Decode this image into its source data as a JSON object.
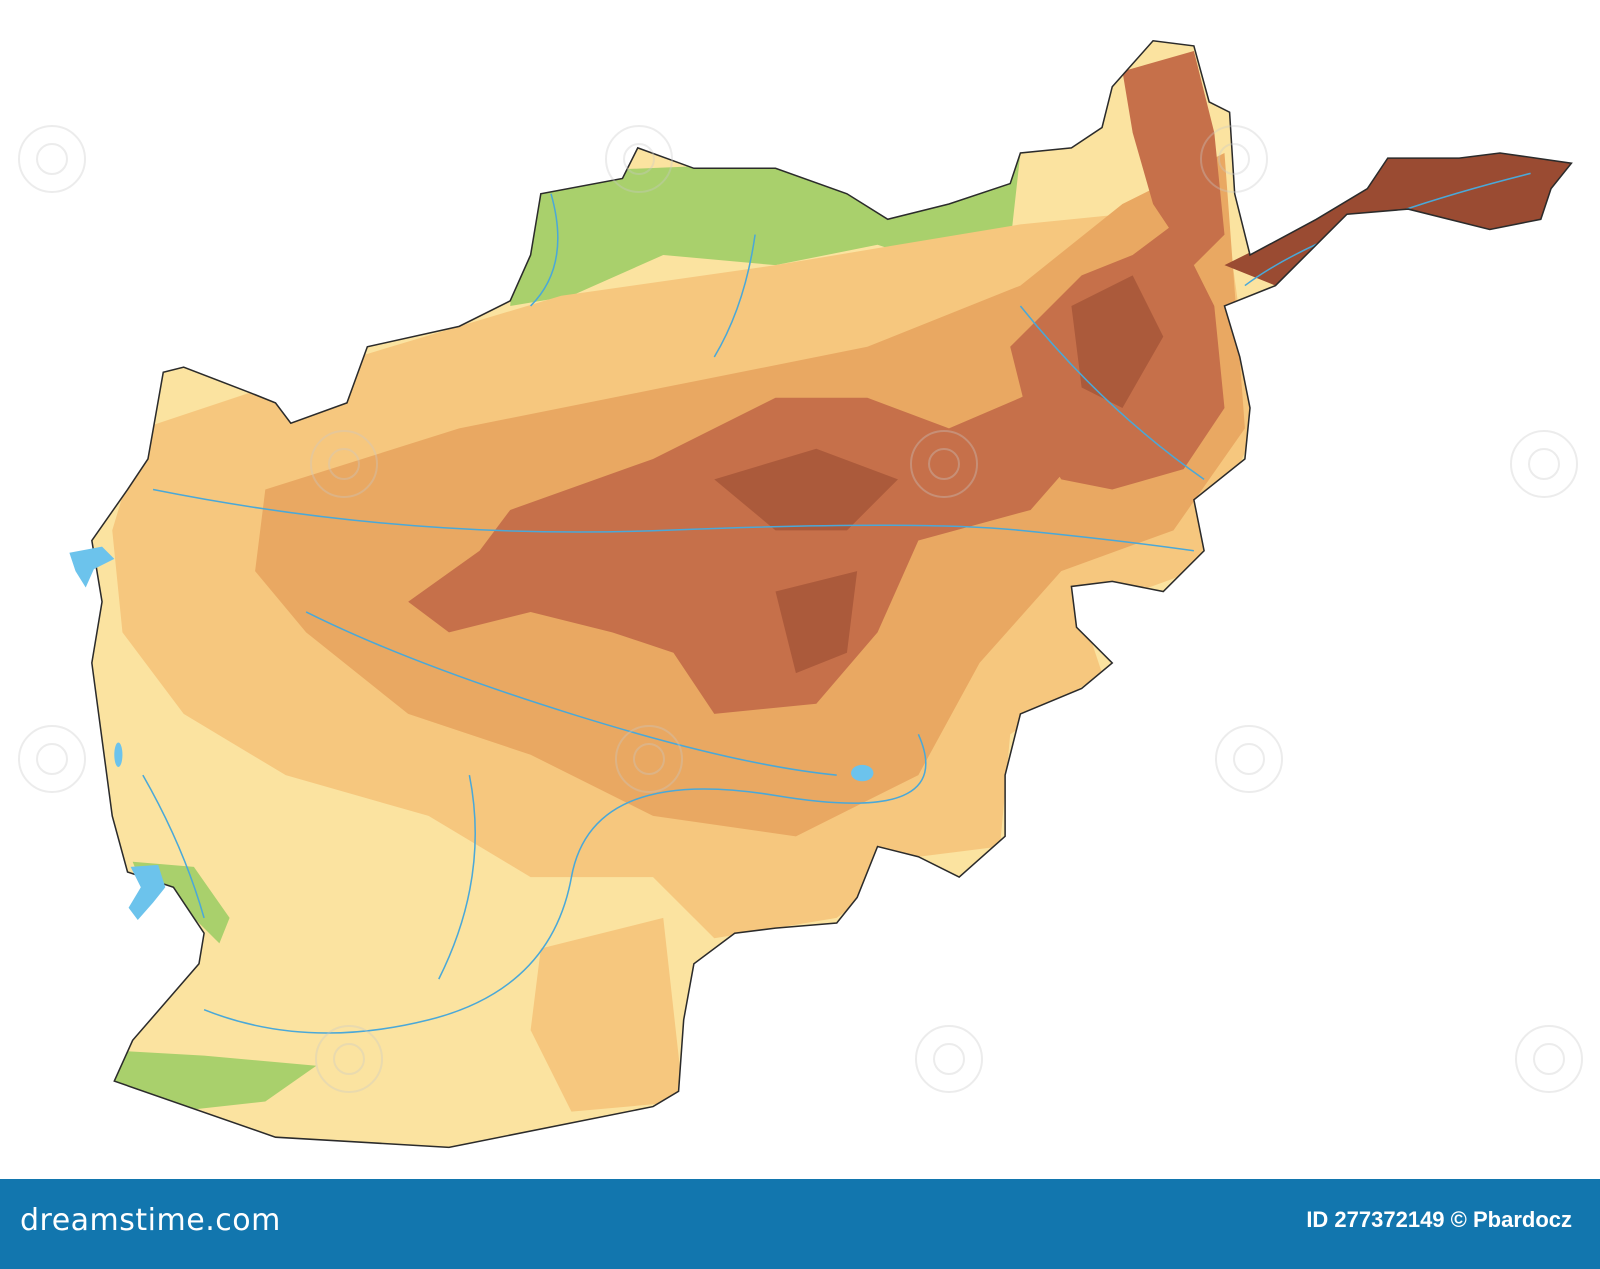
{
  "map": {
    "subject": "Afghanistan physical relief map",
    "colors": {
      "lowland": "#fbe3a0",
      "plateau": "#f6c77e",
      "highland": "#e9a862",
      "mountain": "#c6704a",
      "peak": "#9a4b32",
      "green_lowland": "#a9d06c",
      "water": "#6cc3ec",
      "river": "#4aa8d8",
      "border": "#2b2b2b"
    }
  },
  "footer": {
    "logo": "dreamstime.com",
    "credit": "ID 277372149 © Pbardocz",
    "background": "#1276ae"
  }
}
